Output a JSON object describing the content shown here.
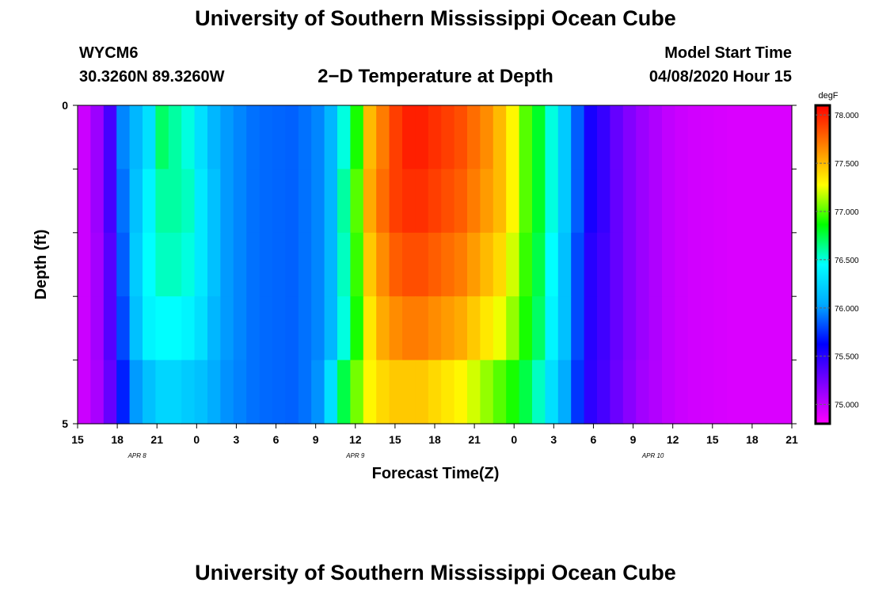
{
  "header": {
    "title": "University of Southern Mississippi Ocean Cube",
    "station": "WYCM6",
    "coords": "30.3260N 89.3260W",
    "plot_title": "2−D Temperature at Depth",
    "model_start_label": "Model Start Time",
    "model_start_value": "04/08/2020 Hour 15"
  },
  "footer": {
    "title": "University of Southern Mississippi Ocean Cube"
  },
  "chart_data": {
    "type": "heatmap",
    "title": "2−D Temperature at Depth",
    "xlabel": "Forecast Time(Z)",
    "ylabel": "Depth (ft)",
    "x_tick_labels": [
      "15",
      "18",
      "21",
      "0",
      "3",
      "6",
      "9",
      "12",
      "15",
      "18",
      "21",
      "0",
      "3",
      "6",
      "9",
      "12",
      "15",
      "18",
      "21"
    ],
    "date_labels": [
      "APR 8",
      "APR 9",
      "APR 10"
    ],
    "y_tick_labels": [
      "0",
      "5"
    ],
    "ylim": [
      0,
      5
    ],
    "colorbar": {
      "unit": "degF",
      "ticks": [
        "75.000",
        "75.500",
        "76.000",
        "76.500",
        "77.000",
        "77.500",
        "78.000"
      ],
      "range": [
        74.8,
        78.1
      ],
      "colors": [
        "#ff00ff",
        "#8000ff",
        "#0000ff",
        "#00aaff",
        "#00ffff",
        "#00ff00",
        "#ffff00",
        "#ff8000",
        "#ff0000"
      ]
    },
    "x": [
      0,
      1,
      2,
      3,
      4,
      5,
      6,
      7,
      8,
      9,
      10,
      11,
      12,
      13,
      14,
      15,
      16,
      17,
      18,
      19,
      20,
      21,
      22,
      23,
      24,
      25,
      26,
      27,
      28,
      29,
      30,
      31,
      32,
      33,
      34,
      35,
      36,
      37,
      38,
      39,
      40,
      41,
      42,
      43,
      44,
      45,
      46,
      47,
      48,
      49,
      50,
      51,
      52,
      53,
      54
    ],
    "x_units": "forecast hour from 04/08/2020 Hour 15",
    "depth_layers": [
      0,
      1,
      2,
      3,
      4
    ],
    "series": [
      {
        "depth_layer": 0,
        "values": [
          74.97,
          75.12,
          75.4,
          75.95,
          76.1,
          76.3,
          76.7,
          76.6,
          76.5,
          76.3,
          76.1,
          76.0,
          75.95,
          75.9,
          75.88,
          75.87,
          75.86,
          75.9,
          75.95,
          76.1,
          76.5,
          76.9,
          77.5,
          77.7,
          77.9,
          78.0,
          78.0,
          77.95,
          77.9,
          77.85,
          77.75,
          77.65,
          77.5,
          77.3,
          77.0,
          76.8,
          76.5,
          76.2,
          75.85,
          75.55,
          75.45,
          75.3,
          75.2,
          75.12,
          75.06,
          75.0,
          74.97,
          74.95,
          74.94,
          74.93,
          74.92,
          74.92,
          74.92,
          74.92,
          74.92
        ]
      },
      {
        "depth_layer": 1,
        "values": [
          74.97,
          75.12,
          75.4,
          75.9,
          76.15,
          76.4,
          76.6,
          76.6,
          76.55,
          76.35,
          76.15,
          76.0,
          75.95,
          75.9,
          75.88,
          75.87,
          75.86,
          75.9,
          75.95,
          76.1,
          76.6,
          77.0,
          77.55,
          77.75,
          77.9,
          77.95,
          77.95,
          77.9,
          77.85,
          77.8,
          77.7,
          77.6,
          77.5,
          77.3,
          77.0,
          76.8,
          76.5,
          76.2,
          75.85,
          75.55,
          75.45,
          75.3,
          75.2,
          75.12,
          75.06,
          75.0,
          74.97,
          74.95,
          74.94,
          74.93,
          74.92,
          74.92,
          74.92,
          74.92,
          74.92
        ]
      },
      {
        "depth_layer": 2,
        "values": [
          74.97,
          75.1,
          75.35,
          75.85,
          76.2,
          76.45,
          76.55,
          76.55,
          76.5,
          76.35,
          76.15,
          76.0,
          75.95,
          75.9,
          75.88,
          75.87,
          75.86,
          75.9,
          75.95,
          76.1,
          76.55,
          76.95,
          77.45,
          77.65,
          77.8,
          77.85,
          77.85,
          77.8,
          77.75,
          77.7,
          77.6,
          77.5,
          77.4,
          77.2,
          76.95,
          76.75,
          76.45,
          76.15,
          75.8,
          75.5,
          75.42,
          75.3,
          75.2,
          75.12,
          75.06,
          75.0,
          74.97,
          74.95,
          74.94,
          74.93,
          74.92,
          74.92,
          74.92,
          74.92,
          74.92
        ]
      },
      {
        "depth_layer": 3,
        "values": [
          74.97,
          75.1,
          75.35,
          75.8,
          76.15,
          76.4,
          76.45,
          76.45,
          76.4,
          76.3,
          76.1,
          76.0,
          75.95,
          75.9,
          75.88,
          75.87,
          75.86,
          75.9,
          75.95,
          76.1,
          76.5,
          76.9,
          77.35,
          77.55,
          77.65,
          77.7,
          77.7,
          77.65,
          77.6,
          77.55,
          77.45,
          77.35,
          77.25,
          77.1,
          76.9,
          76.7,
          76.4,
          76.15,
          75.8,
          75.5,
          75.42,
          75.3,
          75.2,
          75.12,
          75.06,
          75.0,
          74.97,
          74.95,
          74.94,
          74.93,
          74.92,
          74.92,
          74.92,
          74.92,
          74.92
        ]
      },
      {
        "depth_layer": 4,
        "values": [
          74.97,
          75.08,
          75.3,
          75.7,
          76.0,
          76.15,
          76.25,
          76.25,
          76.2,
          76.15,
          76.05,
          75.98,
          75.94,
          75.9,
          75.88,
          75.87,
          75.86,
          75.9,
          75.98,
          76.3,
          76.75,
          77.05,
          77.3,
          77.4,
          77.45,
          77.45,
          77.45,
          77.4,
          77.35,
          77.3,
          77.2,
          77.1,
          77.0,
          76.9,
          76.75,
          76.55,
          76.3,
          76.05,
          75.75,
          75.48,
          75.4,
          75.28,
          75.18,
          75.1,
          75.05,
          75.0,
          74.97,
          74.95,
          74.94,
          74.93,
          74.92,
          74.92,
          74.92,
          74.92,
          74.92
        ]
      }
    ]
  }
}
